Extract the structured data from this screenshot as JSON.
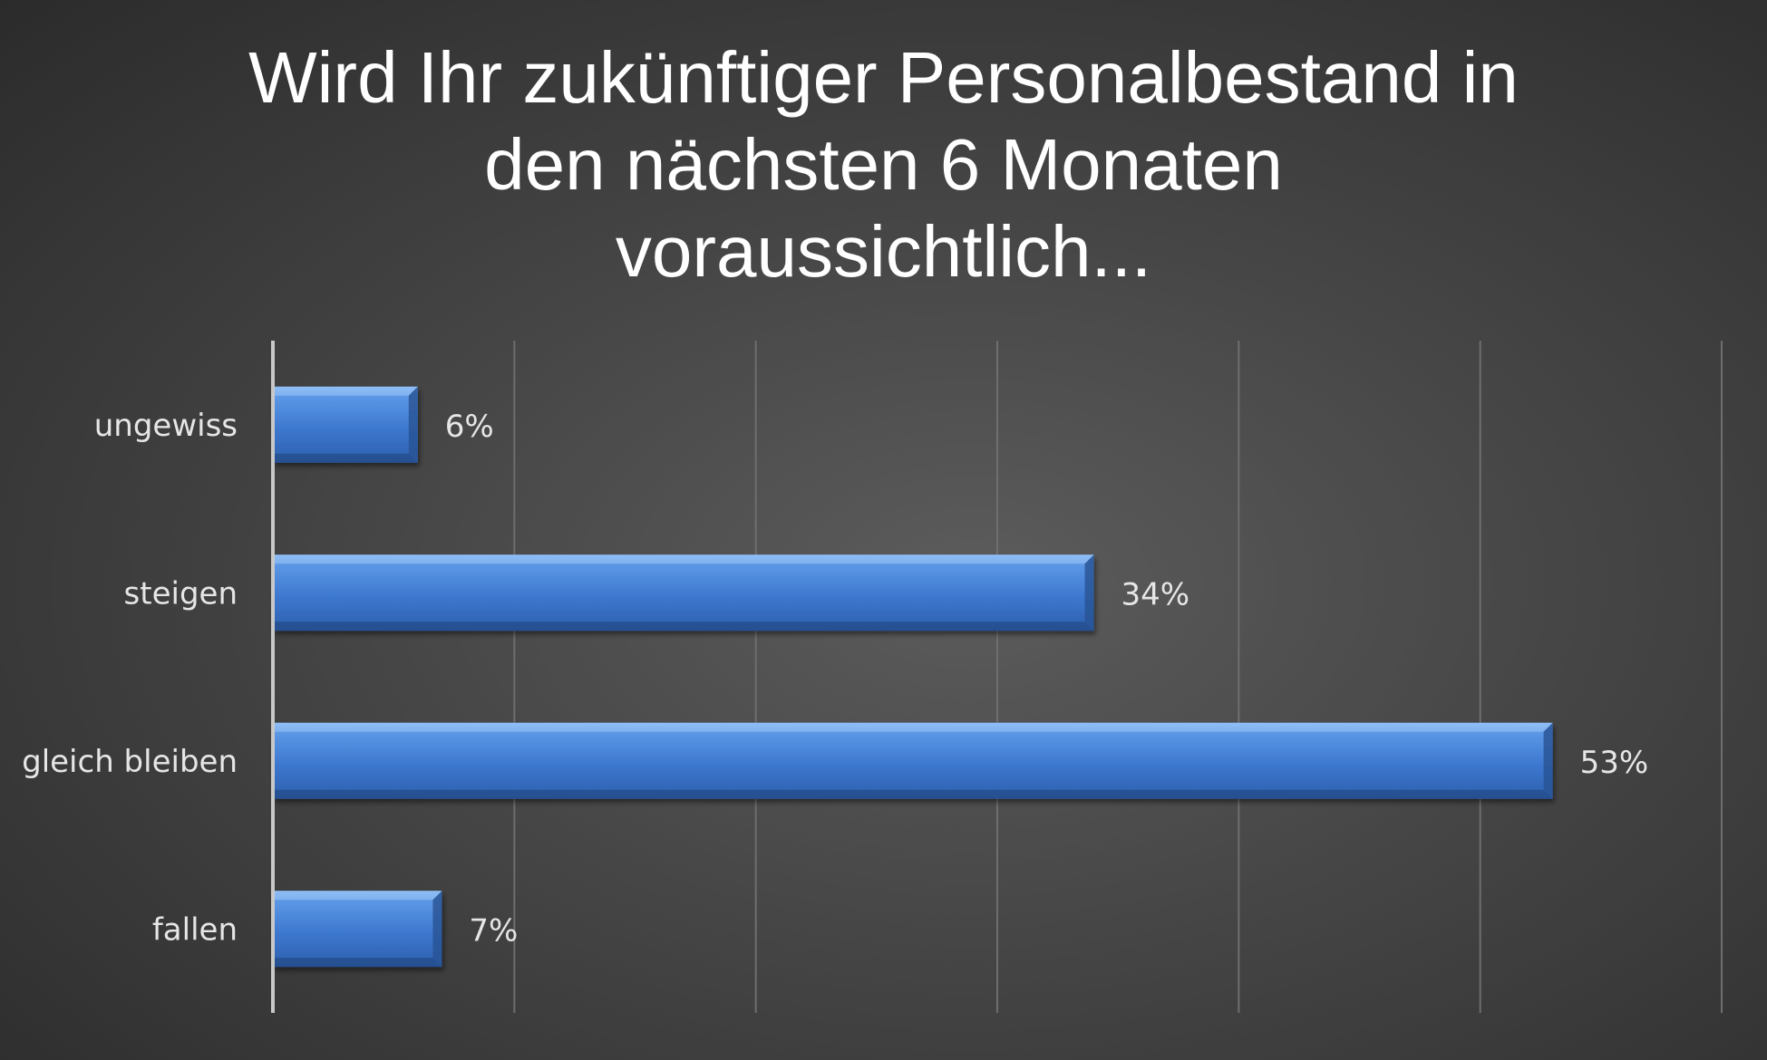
{
  "chart_data": {
    "type": "bar",
    "orientation": "horizontal",
    "title_lines": [
      "Wird Ihr zukünftiger Personalbestand in",
      "den nächsten 6 Monaten",
      "voraussichtlich..."
    ],
    "categories": [
      "ungewiss",
      "steigen",
      "gleich bleiben",
      "fallen"
    ],
    "values": [
      6,
      34,
      53,
      7
    ],
    "value_labels": [
      "6%",
      "34%",
      "53%",
      "7%"
    ],
    "xlim": [
      0,
      60
    ],
    "grid": true,
    "bar_color": "#3e7ad0"
  }
}
